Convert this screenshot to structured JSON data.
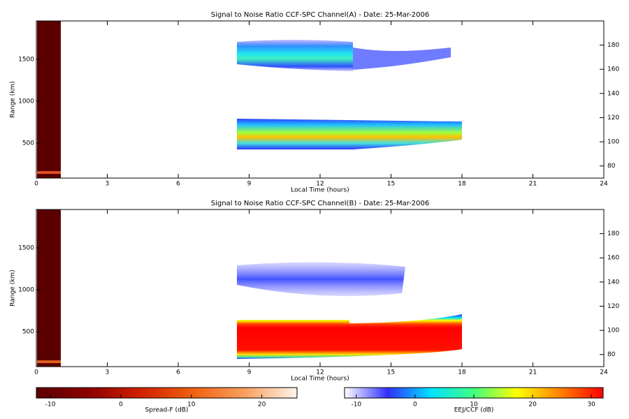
{
  "chart_data": [
    {
      "type": "heatmap",
      "title": "Signal to Noise Ratio CCF-SPC Channel(A) - Date: 25-Mar-2006",
      "xlabel": "Local Time (hours)",
      "ylabel": "Range (km)",
      "xlim": [
        0,
        24
      ],
      "xticks": [
        0,
        3,
        6,
        9,
        12,
        15,
        18,
        21,
        24
      ],
      "ylim": [
        83,
        1958
      ],
      "yticks": [
        500,
        1000,
        1500
      ],
      "y2lim": [
        70,
        200
      ],
      "y2ticks": [
        80,
        100,
        120,
        140,
        160,
        180
      ]
    },
    {
      "type": "heatmap",
      "title": "Signal to Noise Ratio CCF-SPC Channel(B) - Date: 25-Mar-2006",
      "xlabel": "Local Time (hours)",
      "ylabel": "Range (km)",
      "xlim": [
        0,
        24
      ],
      "xticks": [
        0,
        3,
        6,
        9,
        12,
        15,
        18,
        21,
        24
      ],
      "ylim": [
        83,
        1958
      ],
      "yticks": [
        500,
        1000,
        1500
      ],
      "y2lim": [
        70,
        200
      ],
      "y2ticks": [
        80,
        100,
        120,
        140,
        160,
        180
      ]
    }
  ],
  "colorbars": [
    {
      "label": "Spread-F (dB)",
      "lim": [
        -12,
        25
      ],
      "ticks": [
        -10,
        0,
        10,
        20
      ],
      "colors": [
        "#5a0000",
        "#8c0000",
        "#d02000",
        "#f06010",
        "#f8a060",
        "#fff4ec"
      ]
    },
    {
      "label": "EEJ/CCF (dB)",
      "lim": [
        -12,
        32
      ],
      "ticks": [
        -10,
        0,
        10,
        20,
        30
      ],
      "colors": [
        "#ffffff",
        "#3030ff",
        "#00e0ff",
        "#40ff80",
        "#ffff00",
        "#ff8000",
        "#ff0000"
      ]
    }
  ]
}
